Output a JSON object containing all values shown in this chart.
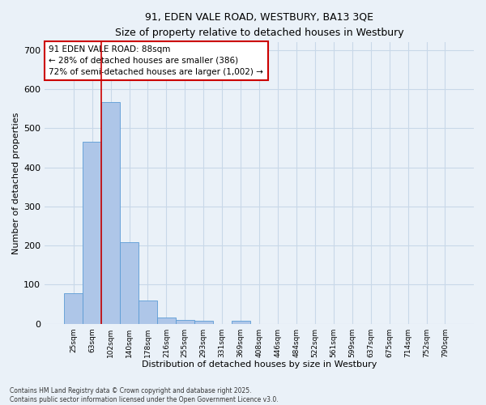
{
  "title": "91, EDEN VALE ROAD, WESTBURY, BA13 3QE",
  "subtitle": "Size of property relative to detached houses in Westbury",
  "xlabel": "Distribution of detached houses by size in Westbury",
  "ylabel": "Number of detached properties",
  "footer1": "Contains HM Land Registry data © Crown copyright and database right 2025.",
  "footer2": "Contains public sector information licensed under the Open Government Licence v3.0.",
  "categories": [
    "25sqm",
    "63sqm",
    "102sqm",
    "140sqm",
    "178sqm",
    "216sqm",
    "255sqm",
    "293sqm",
    "331sqm",
    "369sqm",
    "408sqm",
    "446sqm",
    "484sqm",
    "522sqm",
    "561sqm",
    "599sqm",
    "637sqm",
    "675sqm",
    "714sqm",
    "752sqm",
    "790sqm"
  ],
  "values": [
    78,
    465,
    567,
    208,
    60,
    15,
    10,
    7,
    0,
    7,
    0,
    0,
    0,
    0,
    0,
    0,
    0,
    0,
    0,
    0,
    0
  ],
  "bar_color": "#aec6e8",
  "bar_edge_color": "#5b9bd5",
  "grid_color": "#c8d8e8",
  "background_color": "#eaf1f8",
  "annotation_text": "91 EDEN VALE ROAD: 88sqm\n← 28% of detached houses are smaller (386)\n72% of semi-detached houses are larger (1,002) →",
  "annotation_box_color": "#ffffff",
  "annotation_box_edge_color": "#cc0000",
  "red_line_x": 1.5,
  "ylim": [
    0,
    720
  ],
  "yticks": [
    0,
    100,
    200,
    300,
    400,
    500,
    600,
    700
  ]
}
